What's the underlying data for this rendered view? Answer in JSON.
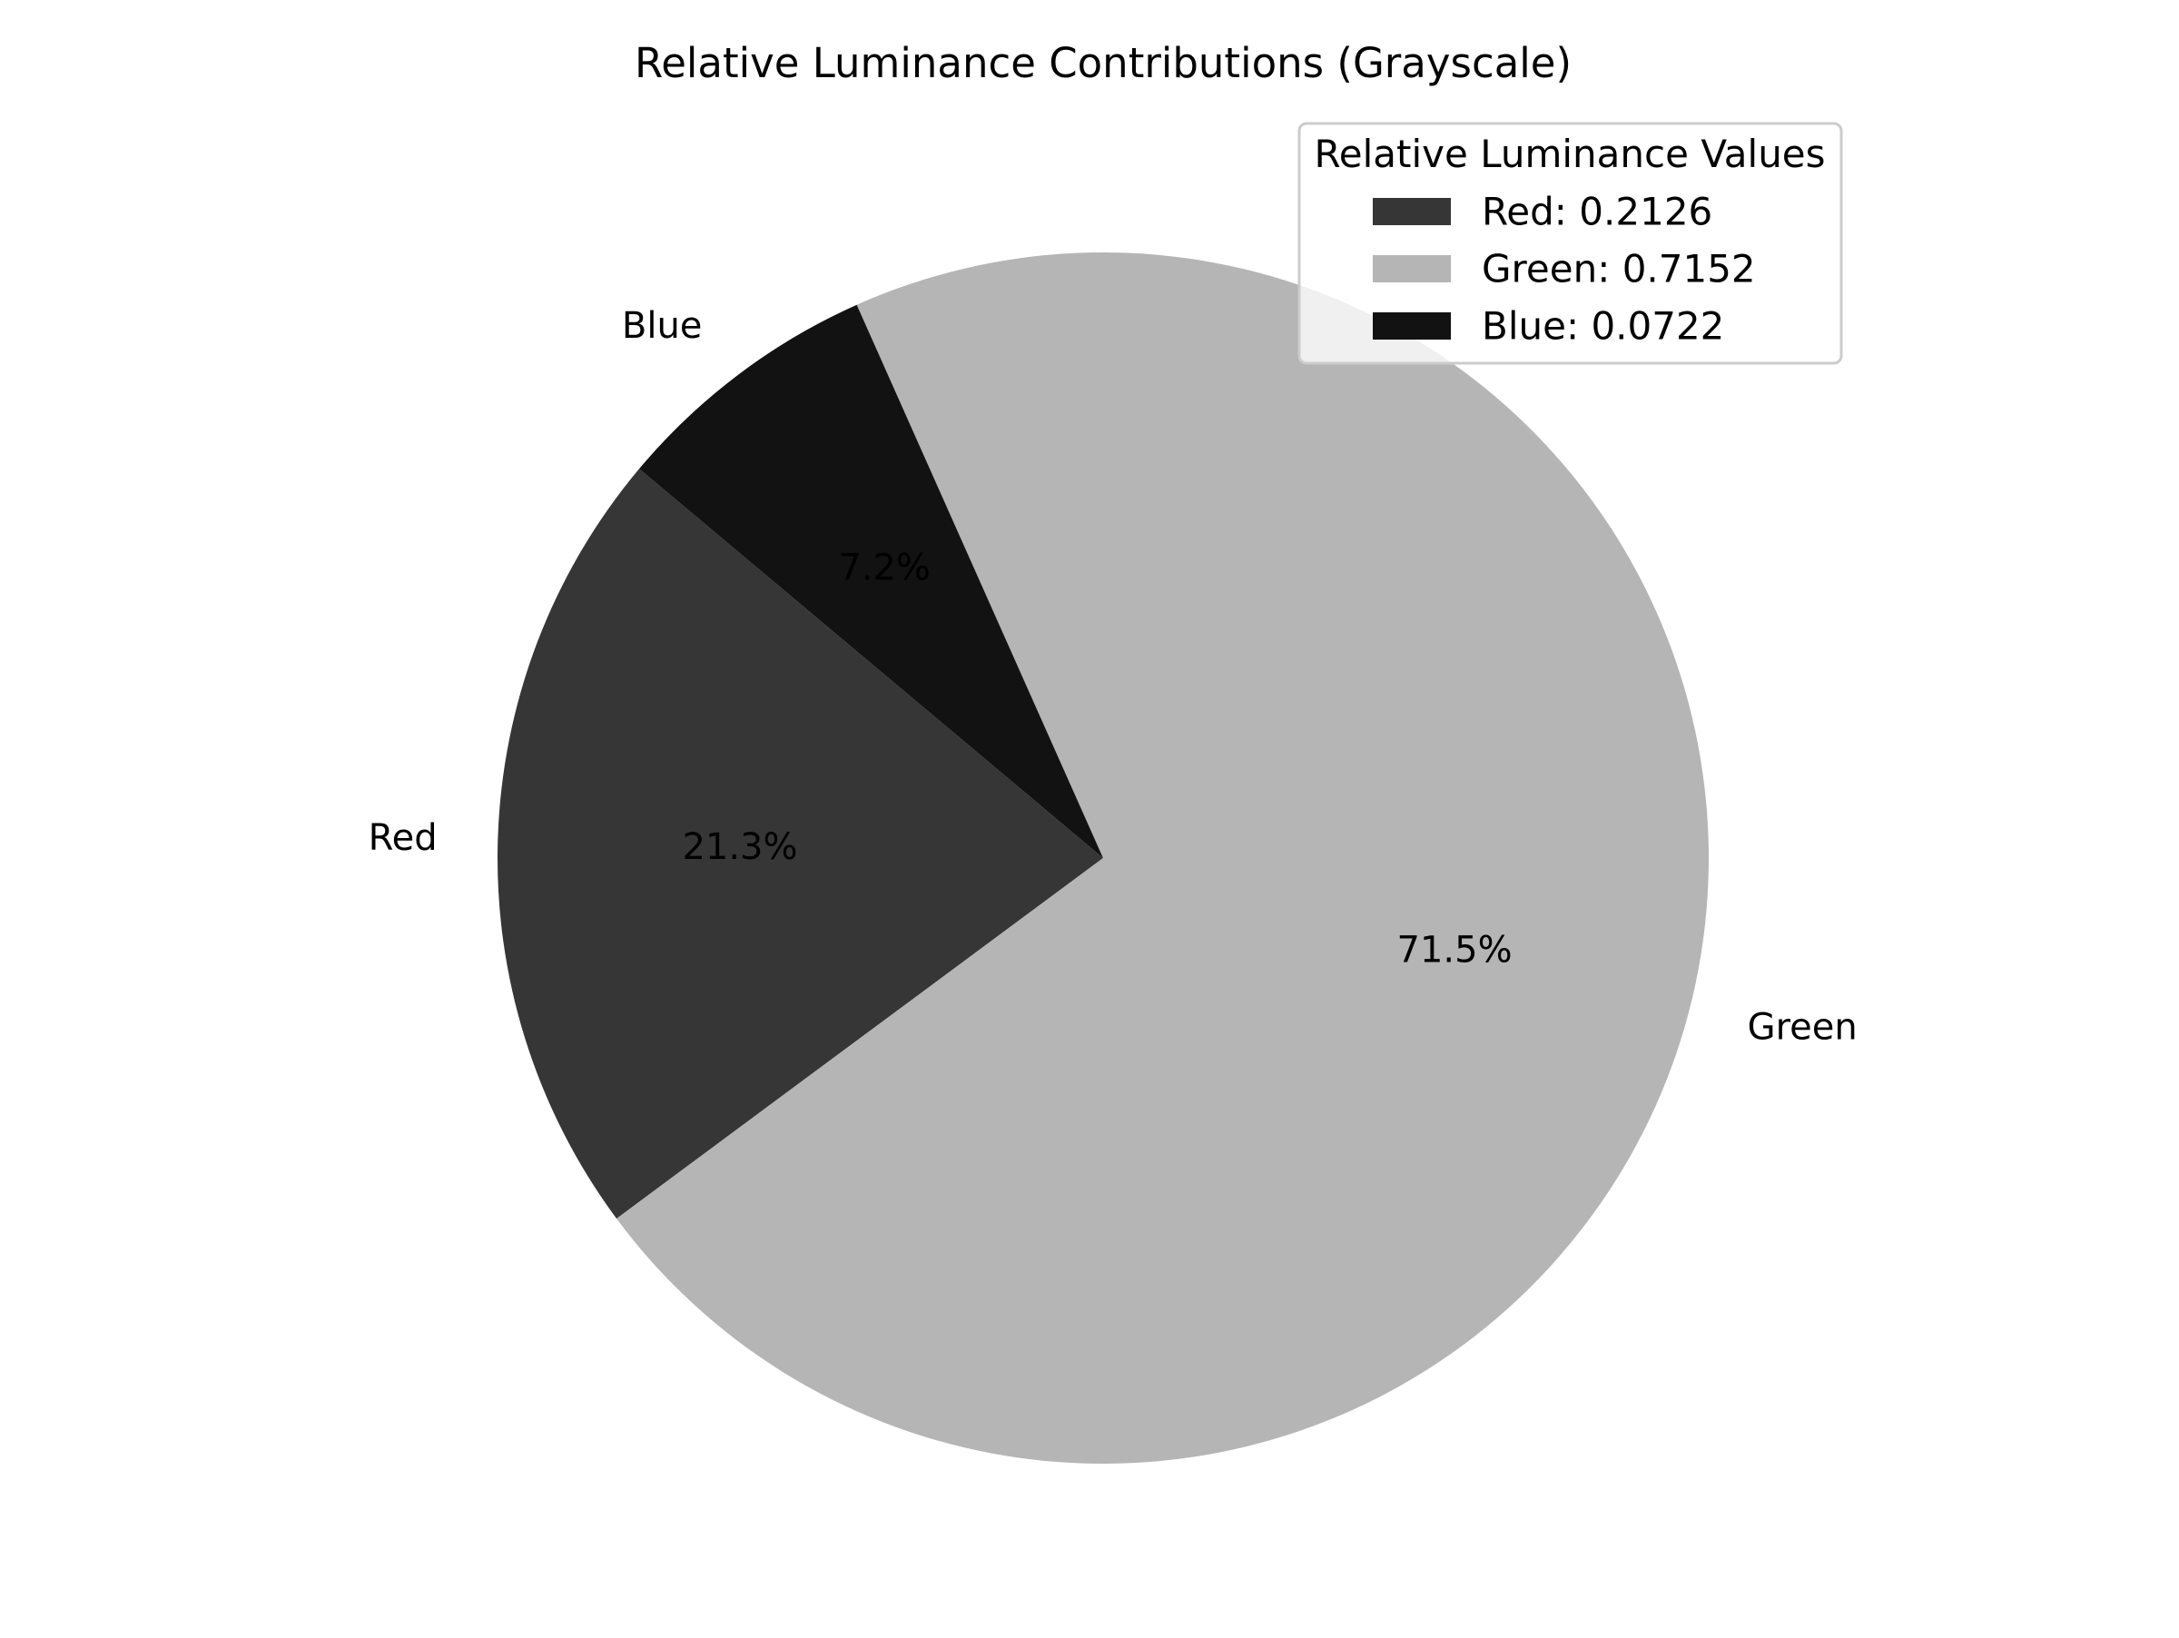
{
  "chart_data": {
    "type": "pie",
    "title": "Relative Luminance Contributions (Grayscale)",
    "slices": [
      {
        "label": "Red",
        "value": 0.2126,
        "percent_label": "21.3%",
        "color": "#363636"
      },
      {
        "label": "Green",
        "value": 0.7152,
        "percent_label": "71.5%",
        "color": "#b5b5b5"
      },
      {
        "label": "Blue",
        "value": 0.0722,
        "percent_label": "7.2%",
        "color": "#121212"
      }
    ],
    "start_angle_deg": 140,
    "direction": "counterclockwise",
    "legend": {
      "title": "Relative Luminance Values",
      "placement": "upper-right",
      "entries": [
        "Red: 0.2126",
        "Green: 0.7152",
        "Blue: 0.0722"
      ]
    }
  }
}
